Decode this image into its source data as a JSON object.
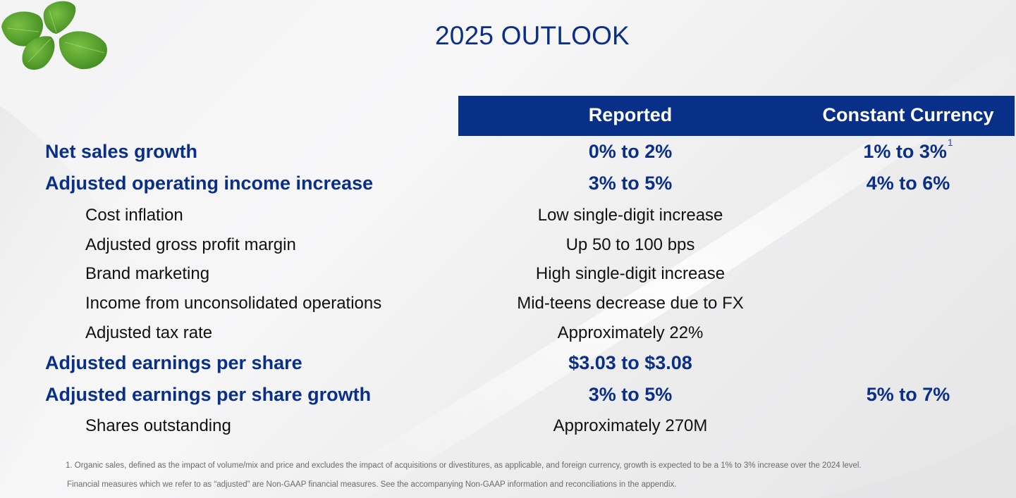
{
  "slide": {
    "title": "2025 OUTLOOK",
    "colors": {
      "accent_navy": "#0A2F87",
      "header_bar": "#083089",
      "body_text": "#111111",
      "footnote_text": "#6b6b6b"
    },
    "decoration_icon": "basil-leaves-image"
  },
  "table": {
    "columns": {
      "reported": "Reported",
      "constant_currency": "Constant Currency"
    },
    "rows": [
      {
        "label": "Net sales growth",
        "level": "main",
        "reported": "0% to 2%",
        "constant_currency": "1% to 3%",
        "cc_footnote": "1"
      },
      {
        "label": "Adjusted operating income increase",
        "level": "main",
        "reported": "3% to 5%",
        "constant_currency": "4% to 6%"
      },
      {
        "label": "Cost inflation",
        "level": "sub",
        "reported": "Low single-digit increase"
      },
      {
        "label": "Adjusted gross profit margin",
        "level": "sub",
        "reported": "Up 50 to 100 bps"
      },
      {
        "label": "Brand marketing",
        "level": "sub",
        "reported": "High single-digit increase"
      },
      {
        "label": "Income from unconsolidated operations",
        "level": "sub",
        "reported": "Mid-teens decrease due to FX"
      },
      {
        "label": "Adjusted tax rate",
        "level": "sub",
        "reported": "Approximately 22%"
      },
      {
        "label": "Adjusted earnings per share",
        "level": "main",
        "reported": "$3.03 to $3.08"
      },
      {
        "label": "Adjusted earnings per share growth",
        "level": "main",
        "reported": "3% to 5%",
        "constant_currency": "5% to 7%"
      },
      {
        "label": "Shares outstanding",
        "level": "sub",
        "reported": "Approximately 270M"
      }
    ]
  },
  "footnotes": [
    "1. Organic sales, defined as the impact of volume/mix and price and excludes the impact of acquisitions or divestitures, as applicable, and foreign currency, growth is expected to be a 1% to 3% increase over the 2024 level.",
    "Financial measures which we refer to as “adjusted” are Non-GAAP financial measures. See the accompanying Non-GAAP information and reconciliations in the appendix."
  ]
}
